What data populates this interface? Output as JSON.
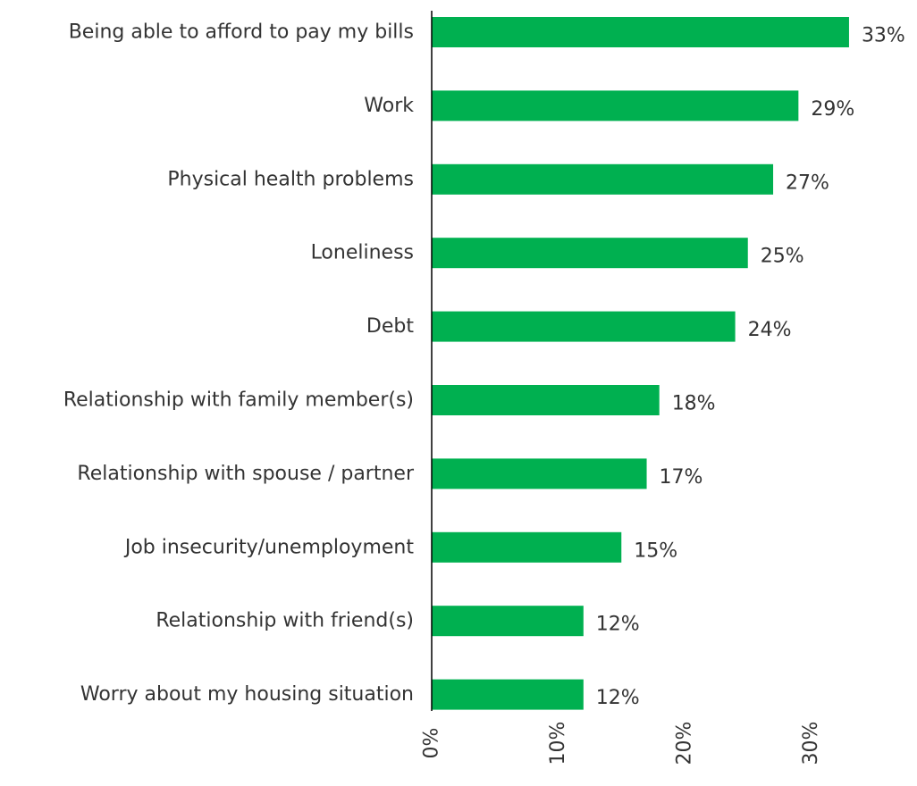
{
  "chart_data": {
    "type": "bar",
    "orientation": "horizontal",
    "title": "",
    "xlabel": "",
    "ylabel": "",
    "xlim": [
      0,
      35
    ],
    "grid": false,
    "legend": "none",
    "categories": [
      "Being able to afford to pay my bills",
      "Work",
      "Physical health problems",
      "Loneliness",
      "Debt",
      "Relationship with family member(s)",
      "Relationship with spouse / partner",
      "Job insecurity/unemployment",
      "Relationship with friend(s)",
      "Worry about my housing situation"
    ],
    "values": [
      33,
      29,
      27,
      25,
      24,
      18,
      17,
      15,
      12,
      12
    ],
    "value_labels": [
      "33%",
      "29%",
      "27%",
      "25%",
      "24%",
      "18%",
      "17%",
      "15%",
      "12%",
      "12%"
    ],
    "ticks": [
      0,
      10,
      20,
      30
    ],
    "tick_labels": [
      "0%",
      "10%",
      "20%",
      "30%"
    ],
    "colors": {
      "bar": "#00b050",
      "axis": "#000000",
      "text": "#333333"
    }
  }
}
